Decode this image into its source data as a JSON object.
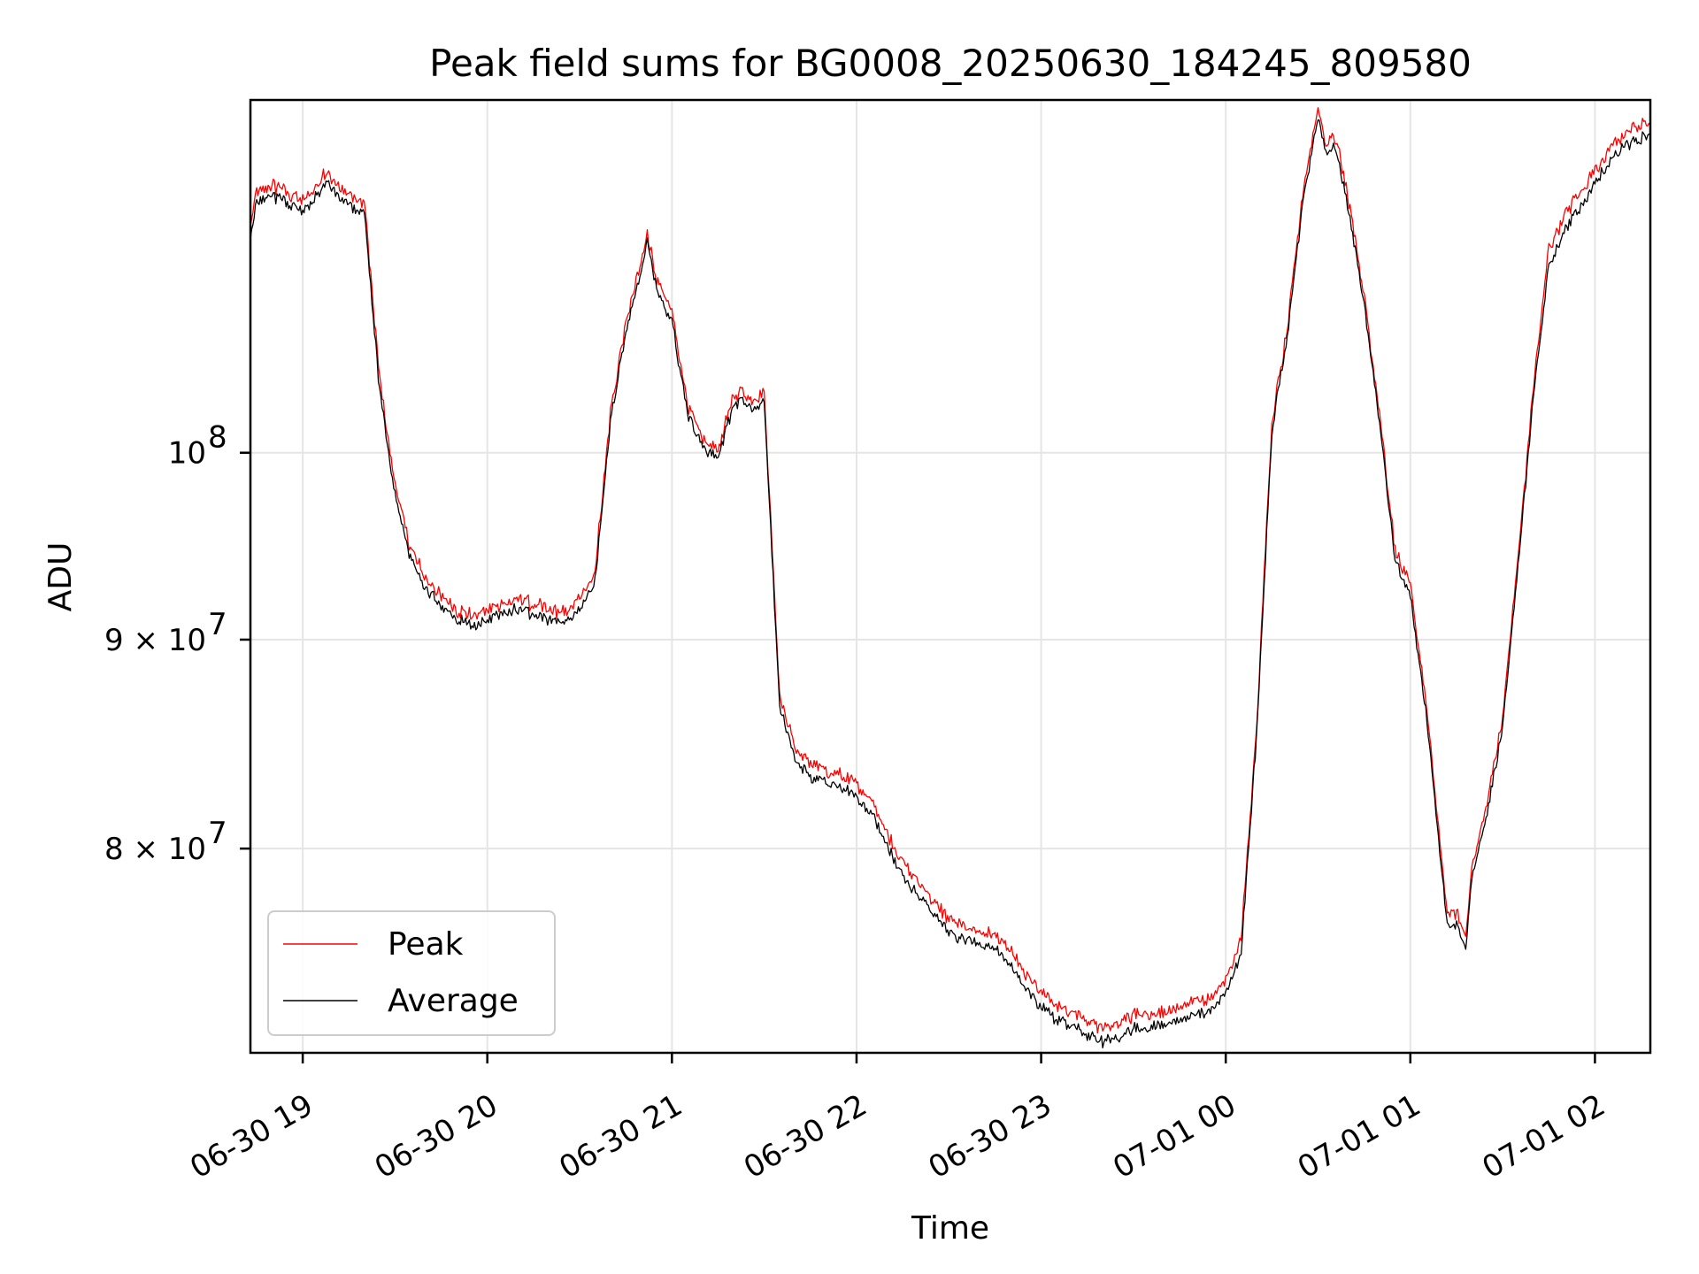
{
  "chart_data": {
    "type": "line",
    "title": "Peak field sums for BG0008_20250630_184245_809580",
    "xlabel": "Time",
    "ylabel": "ADU",
    "x_scale": "time",
    "y_scale": "log",
    "xlim": [
      "2025-06-30 18:43",
      "2025-07-01 02:18"
    ],
    "ylim": [
      71300000,
      122000000
    ],
    "grid": true,
    "legend": "lower-left",
    "x_ticks": [
      {
        "value": "2025-06-30 19:00",
        "label": "06-30 19"
      },
      {
        "value": "2025-06-30 20:00",
        "label": "06-30 20"
      },
      {
        "value": "2025-06-30 21:00",
        "label": "06-30 21"
      },
      {
        "value": "2025-06-30 22:00",
        "label": "06-30 22"
      },
      {
        "value": "2025-06-30 23:00",
        "label": "06-30 23"
      },
      {
        "value": "2025-07-01 00:00",
        "label": "07-01 00"
      },
      {
        "value": "2025-07-01 01:00",
        "label": "07-01 01"
      },
      {
        "value": "2025-07-01 02:00",
        "label": "07-01 02"
      }
    ],
    "y_ticks": [
      {
        "value": 100000000,
        "base": "10",
        "exp": "8"
      },
      {
        "value": 90000000,
        "base": "9 × 10",
        "exp": "7"
      },
      {
        "value": 80000000,
        "base": "8 × 10",
        "exp": "7"
      }
    ],
    "x": [
      "2025-06-30 18:43",
      "2025-06-30 18:45",
      "2025-06-30 18:50",
      "2025-06-30 18:55",
      "2025-06-30 19:00",
      "2025-06-30 19:05",
      "2025-06-30 19:08",
      "2025-06-30 19:12",
      "2025-06-30 19:15",
      "2025-06-30 19:18",
      "2025-06-30 19:20",
      "2025-06-30 19:25",
      "2025-06-30 19:30",
      "2025-06-30 19:35",
      "2025-06-30 19:40",
      "2025-06-30 19:45",
      "2025-06-30 19:50",
      "2025-06-30 19:55",
      "2025-06-30 20:00",
      "2025-06-30 20:05",
      "2025-06-30 20:10",
      "2025-06-30 20:15",
      "2025-06-30 20:20",
      "2025-06-30 20:25",
      "2025-06-30 20:30",
      "2025-06-30 20:35",
      "2025-06-30 20:40",
      "2025-06-30 20:45",
      "2025-06-30 20:50",
      "2025-06-30 20:52",
      "2025-06-30 20:55",
      "2025-06-30 21:00",
      "2025-06-30 21:05",
      "2025-06-30 21:10",
      "2025-06-30 21:15",
      "2025-06-30 21:20",
      "2025-06-30 21:23",
      "2025-06-30 21:26",
      "2025-06-30 21:30",
      "2025-06-30 21:35",
      "2025-06-30 21:38",
      "2025-06-30 21:40",
      "2025-06-30 21:45",
      "2025-06-30 21:50",
      "2025-06-30 21:55",
      "2025-06-30 22:00",
      "2025-06-30 22:05",
      "2025-06-30 22:10",
      "2025-06-30 22:15",
      "2025-06-30 22:20",
      "2025-06-30 22:25",
      "2025-06-30 22:30",
      "2025-06-30 22:35",
      "2025-06-30 22:40",
      "2025-06-30 22:45",
      "2025-06-30 22:50",
      "2025-06-30 22:55",
      "2025-06-30 23:00",
      "2025-06-30 23:05",
      "2025-06-30 23:10",
      "2025-06-30 23:15",
      "2025-06-30 23:20",
      "2025-06-30 23:25",
      "2025-06-30 23:30",
      "2025-06-30 23:35",
      "2025-06-30 23:40",
      "2025-06-30 23:45",
      "2025-06-30 23:50",
      "2025-06-30 23:55",
      "2025-07-01 00:00",
      "2025-07-01 00:05",
      "2025-07-01 00:10",
      "2025-07-01 00:15",
      "2025-07-01 00:20",
      "2025-07-01 00:25",
      "2025-07-01 00:30",
      "2025-07-01 00:33",
      "2025-07-01 00:35",
      "2025-07-01 00:37",
      "2025-07-01 00:40",
      "2025-07-01 00:45",
      "2025-07-01 00:50",
      "2025-07-01 00:55",
      "2025-07-01 01:00",
      "2025-07-01 01:05",
      "2025-07-01 01:10",
      "2025-07-01 01:12",
      "2025-07-01 01:15",
      "2025-07-01 01:18",
      "2025-07-01 01:20",
      "2025-07-01 01:25",
      "2025-07-01 01:30",
      "2025-07-01 01:35",
      "2025-07-01 01:40",
      "2025-07-01 01:45",
      "2025-07-01 01:50",
      "2025-07-01 01:55",
      "2025-07-01 02:00",
      "2025-07-01 02:05",
      "2025-07-01 02:10",
      "2025-07-01 02:15",
      "2025-07-01 02:18"
    ],
    "series": [
      {
        "name": "Peak",
        "color": "#ff0000",
        "values": [
          113500000,
          115500000,
          116000000,
          115500000,
          115000000,
          116000000,
          117000000,
          115800000,
          115500000,
          115000000,
          115000000,
          104000000,
          98000000,
          94500000,
          93000000,
          92000000,
          91300000,
          91000000,
          91300000,
          91700000,
          91900000,
          91600000,
          91300000,
          91200000,
          91900000,
          93400000,
          102000000,
          107500000,
          111000000,
          113000000,
          110000000,
          108000000,
          102500000,
          100500000,
          100000000,
          103000000,
          103300000,
          102800000,
          103300000,
          87000000,
          85500000,
          84500000,
          83700000,
          83400000,
          83200000,
          82800000,
          82000000,
          80500000,
          79200000,
          78300000,
          77500000,
          76700000,
          76300000,
          76200000,
          76100000,
          75300000,
          74300000,
          73600000,
          73000000,
          72800000,
          72400000,
          72100000,
          72300000,
          72700000,
          72700000,
          72800000,
          73000000,
          73200000,
          73400000,
          74200000,
          75800000,
          85500000,
          101500000,
          107000000,
          115500000,
          121000000,
          118500000,
          119500000,
          118000000,
          115000000,
          109000000,
          102000000,
          94500000,
          92500000,
          87000000,
          79500000,
          77000000,
          77000000,
          76000000,
          79000000,
          82000000,
          86000000,
          94000000,
          103500000,
          112000000,
          114000000,
          115500000,
          117000000,
          118500000,
          119500000,
          120000000,
          120300000
        ]
      },
      {
        "name": "Average",
        "color": "#000000",
        "values": [
          113100000,
          115100000,
          115600000,
          115100000,
          114600000,
          115600000,
          116500000,
          115400000,
          115100000,
          114600000,
          114600000,
          103600000,
          97600000,
          94200000,
          92700000,
          91700000,
          91000000,
          90700000,
          91000000,
          91400000,
          91600000,
          91300000,
          91000000,
          90900000,
          91600000,
          93100000,
          101700000,
          107200000,
          110700000,
          112700000,
          109700000,
          107700000,
          102200000,
          100200000,
          99700000,
          102700000,
          103000000,
          102500000,
          103000000,
          86700000,
          85200000,
          84100000,
          83300000,
          83000000,
          82800000,
          82400000,
          81600000,
          80100000,
          78800000,
          77900000,
          77100000,
          76300000,
          75900000,
          75800000,
          75700000,
          74900000,
          73900000,
          73200000,
          72600000,
          72400000,
          72000000,
          71700000,
          71900000,
          72300000,
          72300000,
          72400000,
          72600000,
          72800000,
          73000000,
          73800000,
          75400000,
          85200000,
          101200000,
          106700000,
          115200000,
          120600000,
          118100000,
          119100000,
          117600000,
          114600000,
          108700000,
          101700000,
          94200000,
          92200000,
          86700000,
          79200000,
          76700000,
          76700000,
          75700000,
          78700000,
          81700000,
          85700000,
          93700000,
          103200000,
          111200000,
          113200000,
          114800000,
          116400000,
          117900000,
          118900000,
          119400000,
          119700000
        ]
      }
    ]
  }
}
